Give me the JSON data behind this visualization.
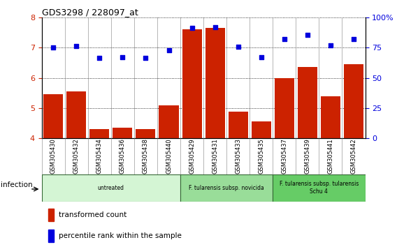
{
  "title": "GDS3298 / 228097_at",
  "samples": [
    "GSM305430",
    "GSM305432",
    "GSM305434",
    "GSM305436",
    "GSM305438",
    "GSM305440",
    "GSM305429",
    "GSM305431",
    "GSM305433",
    "GSM305435",
    "GSM305437",
    "GSM305439",
    "GSM305441",
    "GSM305442"
  ],
  "bar_values": [
    5.45,
    5.55,
    4.3,
    4.35,
    4.3,
    5.08,
    7.6,
    7.65,
    4.88,
    4.55,
    6.0,
    6.35,
    5.4,
    6.45
  ],
  "dot_values": [
    7.0,
    7.05,
    6.65,
    6.67,
    6.65,
    6.92,
    7.65,
    7.68,
    7.02,
    6.68,
    7.28,
    7.42,
    7.07,
    7.28
  ],
  "bar_color": "#cc2200",
  "dot_color": "#0000dd",
  "ylim_left": [
    4,
    8
  ],
  "ylim_right": [
    0,
    100
  ],
  "yticks_left": [
    4,
    5,
    6,
    7,
    8
  ],
  "yticks_right": [
    0,
    25,
    50,
    75,
    100
  ],
  "ytick_labels_right": [
    "0",
    "25",
    "50",
    "75",
    "100%"
  ],
  "groups": [
    {
      "label": "untreated",
      "start": 0,
      "end": 5,
      "color": "#d4f5d4"
    },
    {
      "label": "F. tularensis subsp. novicida",
      "start": 6,
      "end": 9,
      "color": "#99dd99"
    },
    {
      "label": "F. tularensis subsp. tularensis\nSchu 4",
      "start": 10,
      "end": 13,
      "color": "#66cc66"
    }
  ],
  "infection_label": "infection",
  "legend_bar_label": "transformed count",
  "legend_dot_label": "percentile rank within the sample",
  "bar_bottom": 4.0,
  "xticklabel_bg": "#dddddd",
  "figure_bg": "#ffffff"
}
